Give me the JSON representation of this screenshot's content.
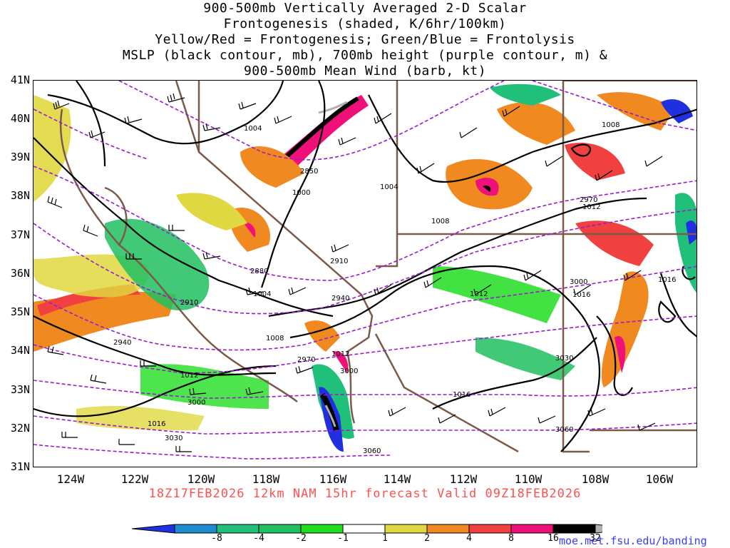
{
  "title_lines": [
    "900-500mb Vertically Averaged 2-D Scalar",
    "Frontogenesis (shaded, K/6hr/100km)",
    "Yellow/Red = Frontogenesis;  Green/Blue = Frontolysis",
    "MSLP (black contour, mb), 700mb height (purple contour, m) &",
    "900-500mb Mean Wind (barb, kt)"
  ],
  "lat_labels": [
    "41N",
    "40N",
    "39N",
    "38N",
    "37N",
    "36N",
    "35N",
    "34N",
    "33N",
    "32N",
    "31N"
  ],
  "lon_labels": [
    "124W",
    "122W",
    "120W",
    "118W",
    "116W",
    "114W",
    "112W",
    "110W",
    "108W",
    "106W"
  ],
  "valid_text": "18Z17FEB2026 12km NAM 15hr forecast Valid 09Z18FEB2026",
  "colorbar": {
    "labels": [
      "-8",
      "-4",
      "-2",
      "-1",
      "1",
      "2",
      "4",
      "8",
      "16",
      "32"
    ],
    "colors": [
      "#2030e0",
      "#1e8ad0",
      "#20c07a",
      "#20c060",
      "#20dd20",
      "#ffffff",
      "#e0d840",
      "#f08a20",
      "#f04040",
      "#f0107a",
      "#000000",
      "#b0b0b0"
    ]
  },
  "mslp_labels": [
    "1004",
    "1000",
    "1004",
    "1008",
    "1008",
    "1012",
    "1004",
    "1008",
    "1012",
    "1012",
    "1016",
    "1016",
    "1016",
    "1012",
    "1016"
  ],
  "height_labels": [
    "2850",
    "2880",
    "2910",
    "2910",
    "2940",
    "2940",
    "2970",
    "2970",
    "3000",
    "3000",
    "3000",
    "3030",
    "3030",
    "3060",
    "3060"
  ],
  "url": "moe.met.fsu.edu/banding"
}
